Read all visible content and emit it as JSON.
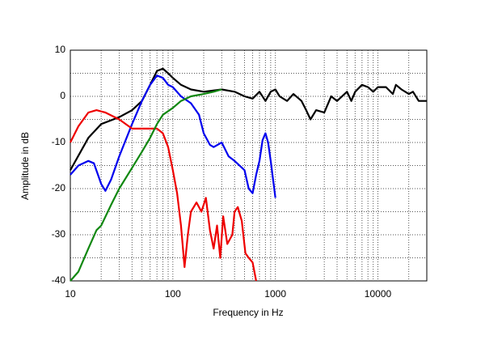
{
  "chart_data": {
    "type": "line",
    "xlabel": "Frequency in Hz",
    "ylabel": "Amplitude in dB",
    "xscale": "log",
    "xlim": [
      10,
      30000
    ],
    "ylim": [
      -40,
      10
    ],
    "xticks": [
      10,
      100,
      1000,
      10000
    ],
    "yticks": [
      10,
      0,
      -10,
      -20,
      -30,
      -40
    ],
    "grid": true,
    "series": [
      {
        "color": "#000000",
        "x": [
          10,
          15,
          20,
          30,
          40,
          50,
          60,
          70,
          80,
          90,
          100,
          120,
          150,
          200,
          300,
          400,
          500,
          600,
          700,
          800,
          900,
          1000,
          1100,
          1300,
          1500,
          1800,
          2000,
          2200,
          2500,
          3000,
          3500,
          4000,
          5000,
          5500,
          6000,
          7000,
          8000,
          9000,
          10000,
          12000,
          14000,
          15000,
          17000,
          20000,
          22000,
          25000,
          30000
        ],
        "values": [
          -16,
          -9,
          -6,
          -4.5,
          -3,
          -1,
          2.5,
          5.5,
          6,
          5,
          4,
          2.5,
          1.5,
          1,
          1.5,
          1,
          0,
          -0.5,
          1,
          -1,
          1,
          1.5,
          0,
          -1,
          0.5,
          -1,
          -3,
          -5,
          -3,
          -3.5,
          0,
          -1,
          1,
          -1,
          1,
          2.5,
          2,
          1,
          2,
          2,
          0.5,
          2.5,
          1.5,
          0.5,
          1,
          -1,
          -1
        ]
      },
      {
        "color": "#0000ee",
        "x": [
          10,
          12,
          15,
          17,
          20,
          22,
          25,
          30,
          40,
          50,
          60,
          70,
          80,
          90,
          100,
          120,
          150,
          180,
          200,
          230,
          250,
          300,
          350,
          400,
          500,
          550,
          600,
          650,
          700,
          750,
          800,
          850,
          900,
          1000
        ],
        "values": [
          -17,
          -15,
          -14,
          -14.5,
          -19,
          -20.5,
          -18,
          -13,
          -6,
          -1,
          2.5,
          4.5,
          4,
          2.5,
          2,
          0,
          -1.5,
          -4,
          -8,
          -10.5,
          -11,
          -10,
          -13,
          -14,
          -16,
          -20,
          -21,
          -17,
          -14,
          -9.5,
          -8,
          -10,
          -14,
          -22
        ]
      },
      {
        "color": "#ee0000",
        "x": [
          10,
          12,
          15,
          18,
          22,
          30,
          40,
          50,
          60,
          70,
          80,
          90,
          100,
          110,
          120,
          130,
          140,
          150,
          170,
          190,
          210,
          230,
          250,
          270,
          290,
          310,
          340,
          380,
          400,
          430,
          470,
          510,
          550,
          600,
          650
        ],
        "values": [
          -10,
          -6.5,
          -3.5,
          -3,
          -3.5,
          -5,
          -7,
          -7,
          -7,
          -7,
          -8,
          -11,
          -16,
          -21,
          -28,
          -37,
          -30,
          -25,
          -23,
          -25,
          -22,
          -29,
          -33,
          -28,
          -35,
          -26,
          -32,
          -30,
          -25,
          -24,
          -27,
          -34,
          -35,
          -36,
          -40
        ]
      },
      {
        "color": "#118811",
        "x": [
          10,
          12,
          15,
          18,
          20,
          25,
          30,
          40,
          50,
          60,
          70,
          80,
          100,
          120,
          150,
          200,
          250,
          300
        ],
        "values": [
          -40,
          -38,
          -33,
          -29,
          -28,
          -23.5,
          -20,
          -15.5,
          -12,
          -9,
          -6,
          -4,
          -2.5,
          -1,
          0,
          0.5,
          1,
          1.5
        ]
      }
    ]
  }
}
